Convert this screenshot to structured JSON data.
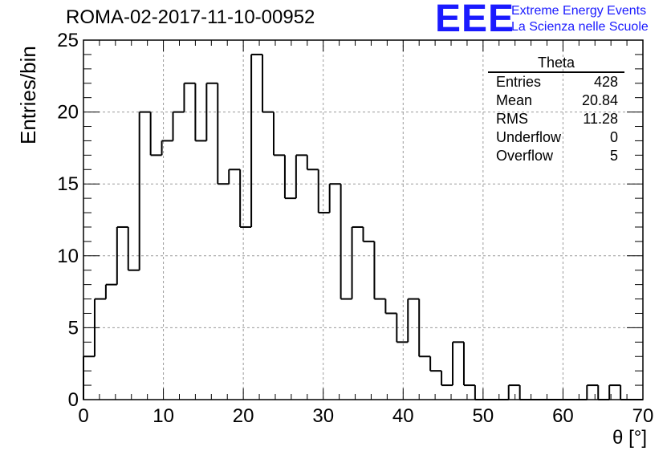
{
  "chart_data": {
    "type": "histogram",
    "title": "ROMA-02-2017-11-10-00952",
    "xlabel": "θ [°]",
    "ylabel": "Entries/bin",
    "xlim": [
      0,
      70
    ],
    "ylim": [
      0,
      25
    ],
    "bin_width": 1.4,
    "x_ticks": [
      "0",
      "10",
      "20",
      "30",
      "40",
      "50",
      "60",
      "70"
    ],
    "y_ticks": [
      "0",
      "5",
      "10",
      "15",
      "20",
      "25"
    ],
    "grid": true,
    "values": [
      3,
      7,
      8,
      12,
      9,
      20,
      17,
      18,
      20,
      22,
      18,
      22,
      15,
      16,
      12,
      24,
      20,
      17,
      14,
      17,
      16,
      13,
      15,
      7,
      12,
      11,
      7,
      6,
      4,
      7,
      3,
      2,
      1,
      4,
      1,
      0,
      0,
      0,
      1,
      0,
      0,
      0,
      0,
      0,
      0,
      1,
      0,
      1,
      0,
      0
    ]
  },
  "stats_box": {
    "name": "Theta",
    "rows": [
      {
        "label": "Entries",
        "value": "428"
      },
      {
        "label": "Mean",
        "value": "20.84"
      },
      {
        "label": "RMS",
        "value": "11.28"
      },
      {
        "label": "Underflow",
        "value": "0"
      },
      {
        "label": "Overflow",
        "value": "5"
      }
    ]
  },
  "logo": {
    "mark": "EEE",
    "line1": "Extreme Energy Events",
    "line2": "La Scienza nelle Scuole"
  }
}
